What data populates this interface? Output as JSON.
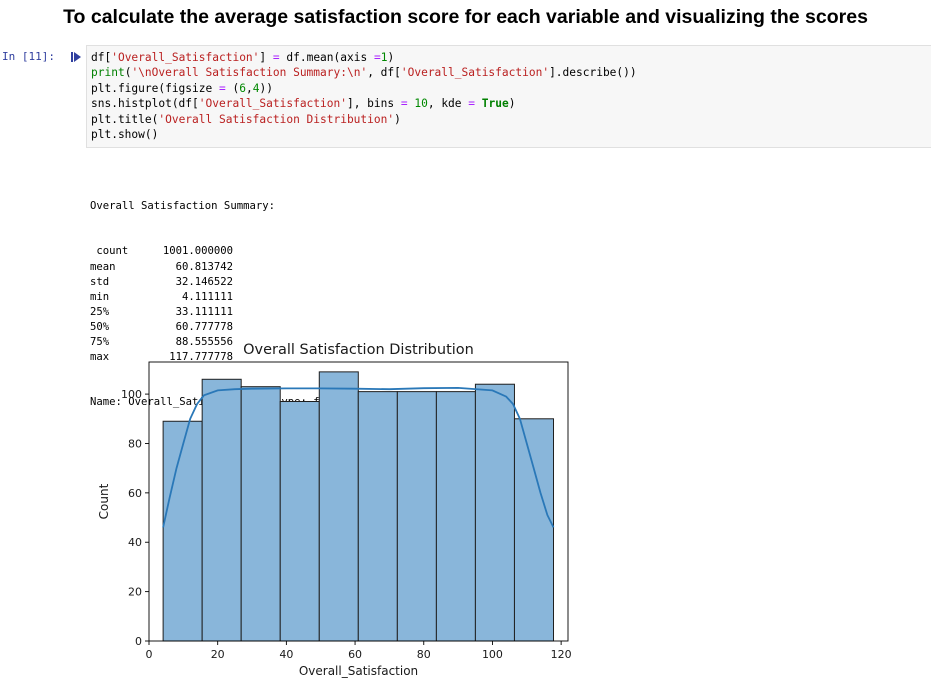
{
  "heading": "To calculate the average satisfaction score for each variable and visualizing the scores",
  "cell": {
    "prompt": "In [11]:",
    "code_lines": [
      [
        {
          "t": "df[",
          "c": "#000000"
        },
        {
          "t": "'Overall_Satisfaction'",
          "c": "#ba2121"
        },
        {
          "t": "] ",
          "c": "#000000"
        },
        {
          "t": "=",
          "c": "#aa22ff"
        },
        {
          "t": " df.mean(axis ",
          "c": "#000000"
        },
        {
          "t": "=",
          "c": "#aa22ff"
        },
        {
          "t": "1",
          "c": "#008800"
        },
        {
          "t": ")",
          "c": "#000000"
        }
      ],
      [
        {
          "t": "print",
          "c": "#008000"
        },
        {
          "t": "(",
          "c": "#000000"
        },
        {
          "t": "'\\nOverall Satisfaction Summary:\\n'",
          "c": "#ba2121"
        },
        {
          "t": ", df[",
          "c": "#000000"
        },
        {
          "t": "'Overall_Satisfaction'",
          "c": "#ba2121"
        },
        {
          "t": "].describe())",
          "c": "#000000"
        }
      ],
      [
        {
          "t": "plt.figure(figsize ",
          "c": "#000000"
        },
        {
          "t": "=",
          "c": "#aa22ff"
        },
        {
          "t": " (",
          "c": "#000000"
        },
        {
          "t": "6",
          "c": "#008800"
        },
        {
          "t": ",",
          "c": "#000000"
        },
        {
          "t": "4",
          "c": "#008800"
        },
        {
          "t": "))",
          "c": "#000000"
        }
      ],
      [
        {
          "t": "sns.histplot(df[",
          "c": "#000000"
        },
        {
          "t": "'Overall_Satisfaction'",
          "c": "#ba2121"
        },
        {
          "t": "], bins ",
          "c": "#000000"
        },
        {
          "t": "=",
          "c": "#aa22ff"
        },
        {
          "t": " ",
          "c": "#000000"
        },
        {
          "t": "10",
          "c": "#008800"
        },
        {
          "t": ", kde ",
          "c": "#000000"
        },
        {
          "t": "=",
          "c": "#aa22ff"
        },
        {
          "t": " ",
          "c": "#000000"
        },
        {
          "t": "True",
          "c": "#008000",
          "b": true
        },
        {
          "t": ")",
          "c": "#000000"
        }
      ],
      [
        {
          "t": "plt.title(",
          "c": "#000000"
        },
        {
          "t": "'Overall Satisfaction Distribution'",
          "c": "#ba2121"
        },
        {
          "t": ")",
          "c": "#000000"
        }
      ],
      [
        {
          "t": "plt.show()",
          "c": "#000000"
        }
      ]
    ]
  },
  "output": {
    "header": "Overall Satisfaction Summary:",
    "rows": [
      {
        "key": " count",
        "value": "1001.000000"
      },
      {
        "key": "mean",
        "value": "60.813742"
      },
      {
        "key": "std",
        "value": "32.146522"
      },
      {
        "key": "min",
        "value": "4.111111"
      },
      {
        "key": "25%",
        "value": "33.111111"
      },
      {
        "key": "50%",
        "value": "60.777778"
      },
      {
        "key": "75%",
        "value": "88.555556"
      },
      {
        "key": "max",
        "value": "117.777778"
      }
    ],
    "footer": "Name: Overall_Satisfaction, dtype: float64"
  },
  "chart_data": {
    "type": "bar",
    "title": "Overall Satisfaction Distribution",
    "xlabel": "Overall_Satisfaction",
    "ylabel": "Count",
    "xlim": [
      0,
      122
    ],
    "ylim": [
      0,
      113
    ],
    "xticks": [
      0,
      20,
      40,
      60,
      80,
      100,
      120
    ],
    "yticks": [
      0,
      20,
      40,
      60,
      80,
      100
    ],
    "bins": [
      {
        "x0": 4.11,
        "x1": 15.48,
        "count": 89
      },
      {
        "x0": 15.48,
        "x1": 26.84,
        "count": 106
      },
      {
        "x0": 26.84,
        "x1": 38.21,
        "count": 103
      },
      {
        "x0": 38.21,
        "x1": 49.58,
        "count": 97
      },
      {
        "x0": 49.58,
        "x1": 60.94,
        "count": 109
      },
      {
        "x0": 60.94,
        "x1": 72.31,
        "count": 101
      },
      {
        "x0": 72.31,
        "x1": 83.68,
        "count": 101
      },
      {
        "x0": 83.68,
        "x1": 95.04,
        "count": 101
      },
      {
        "x0": 95.04,
        "x1": 106.41,
        "count": 104
      },
      {
        "x0": 106.41,
        "x1": 117.78,
        "count": 90
      }
    ],
    "kde": {
      "x": [
        4.11,
        6,
        8,
        10,
        12,
        14,
        16,
        20,
        25,
        30,
        40,
        50,
        60,
        70,
        80,
        90,
        100,
        104,
        106,
        108,
        110,
        112,
        114,
        116,
        117.78
      ],
      "y": [
        46,
        58,
        70,
        80,
        90,
        96,
        99.5,
        101.5,
        102,
        102.2,
        102.3,
        102.3,
        102.2,
        102,
        102.4,
        102.5,
        101.5,
        99,
        96,
        90,
        80,
        70,
        60,
        51,
        46
      ]
    },
    "colors": {
      "bar_fill": "#89b6da",
      "bar_edge": "#1f1f1f",
      "kde_line": "#2a78b8"
    },
    "grid": false,
    "legend": "none"
  }
}
